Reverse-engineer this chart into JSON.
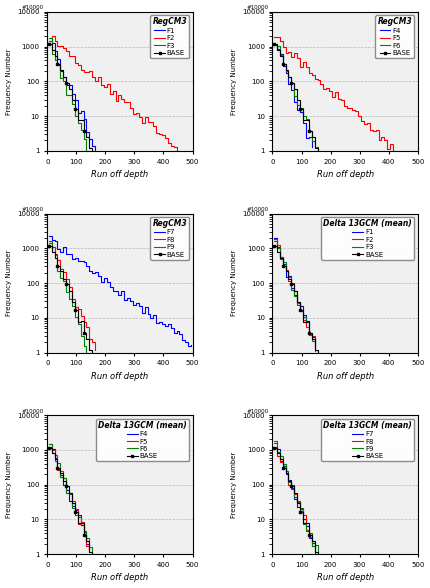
{
  "subplots": [
    {
      "title": "RegCM3",
      "legend_lines": [
        "F1",
        "F2",
        "F3",
        "BASE"
      ],
      "line_colors": [
        "blue",
        "red",
        "green",
        "black"
      ]
    },
    {
      "title": "RegCM3",
      "legend_lines": [
        "F4",
        "F5",
        "F6",
        "BASE"
      ],
      "line_colors": [
        "blue",
        "red",
        "green",
        "black"
      ]
    },
    {
      "title": "RegCM3",
      "legend_lines": [
        "F7",
        "F8",
        "F9",
        "BASE"
      ],
      "line_colors": [
        "blue",
        "red",
        "green",
        "black"
      ]
    },
    {
      "title": "Delta 13GCM (mean)",
      "legend_lines": [
        "F1",
        "F2",
        "F3",
        "BASE"
      ],
      "line_colors": [
        "blue",
        "red",
        "green",
        "black"
      ]
    },
    {
      "title": "Delta 13GCM (mean)",
      "legend_lines": [
        "F4",
        "F5",
        "F6",
        "BASE"
      ],
      "line_colors": [
        "blue",
        "red",
        "green",
        "black"
      ]
    },
    {
      "title": "Delta 13GCM (mean)",
      "legend_lines": [
        "F7",
        "F8",
        "F9",
        "BASE"
      ],
      "line_colors": [
        "blue",
        "red",
        "green",
        "black"
      ]
    }
  ],
  "xlabel": "Run off depth",
  "ylabel": "Frequency Number",
  "xlim": [
    0,
    500
  ],
  "ylim_log": [
    1,
    10000
  ],
  "xticks": [
    0,
    100,
    200,
    300,
    400,
    500
  ],
  "yticks": [
    1,
    10,
    100,
    1000,
    10000
  ],
  "grid_color": "#aaaaaa",
  "bg_color": "#f0f0f0",
  "panel_params": [
    {
      "scales": [
        22,
        60,
        18,
        20
      ],
      "offsets": [
        0,
        5,
        10,
        15
      ]
    },
    {
      "scales": [
        18,
        55,
        20,
        20
      ],
      "offsets": [
        20,
        25,
        30,
        15
      ]
    },
    {
      "scales": [
        70,
        22,
        18,
        20
      ],
      "offsets": [
        35,
        40,
        45,
        15
      ]
    },
    {
      "scales": [
        20,
        20,
        20,
        20
      ],
      "offsets": [
        50,
        55,
        60,
        15
      ]
    },
    {
      "scales": [
        20,
        20,
        20,
        20
      ],
      "offsets": [
        65,
        70,
        75,
        15
      ]
    },
    {
      "scales": [
        20,
        20,
        20,
        20
      ],
      "offsets": [
        80,
        85,
        90,
        15
      ]
    }
  ]
}
